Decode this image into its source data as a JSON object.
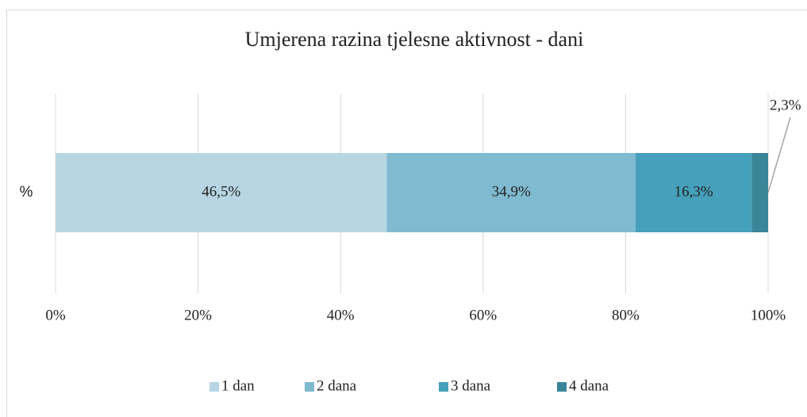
{
  "chart_data": {
    "type": "stacked-bar-horizontal",
    "title": "Umjerena razina tjelesne aktivnost - dani",
    "categories": [
      "%"
    ],
    "series": [
      {
        "name": "1 dan",
        "color": "#b7d5e2",
        "values": [
          46.5
        ],
        "value_labels": [
          "46,5%"
        ]
      },
      {
        "name": "2 dana",
        "color": "#7fbad0",
        "values": [
          34.9
        ],
        "value_labels": [
          "34,9%"
        ]
      },
      {
        "name": "3 dana",
        "color": "#46a0bb",
        "values": [
          16.3
        ],
        "value_labels": [
          "16,3%"
        ]
      },
      {
        "name": "4 dana",
        "color": "#3a8597",
        "values": [
          2.3
        ],
        "value_labels": [
          "2,3%"
        ]
      }
    ],
    "xlim": [
      0,
      100
    ],
    "xticks": [
      {
        "value": 0,
        "label": "0%"
      },
      {
        "value": 20,
        "label": "20%"
      },
      {
        "value": 40,
        "label": "40%"
      },
      {
        "value": 60,
        "label": "60%"
      },
      {
        "value": 80,
        "label": "80%"
      },
      {
        "value": 100,
        "label": "100%"
      }
    ],
    "grid": true,
    "legend": "bottom"
  }
}
